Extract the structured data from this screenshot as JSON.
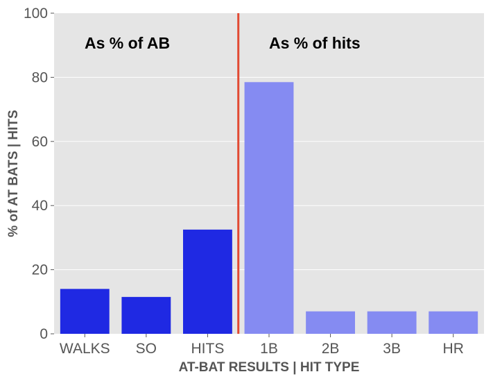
{
  "chart_data": {
    "type": "bar",
    "categories": [
      "WALKS",
      "SO",
      "HITS",
      "1B",
      "2B",
      "3B",
      "HR"
    ],
    "values": [
      14,
      11.5,
      32.5,
      78.5,
      7,
      7,
      7
    ],
    "bar_colors": [
      "#1f29e3",
      "#1f29e3",
      "#1f29e3",
      "#858bf2",
      "#858bf2",
      "#858bf2",
      "#858bf2"
    ],
    "xlabel": "AT-BAT RESULTS | HIT TYPE",
    "ylabel": "% of AT BATS | HITS",
    "ylim": [
      0,
      100
    ],
    "yticks": [
      0,
      20,
      40,
      60,
      80,
      100
    ],
    "grid": true,
    "background_color": "#e5e5e5",
    "divider": {
      "between": [
        "HITS",
        "1B"
      ],
      "color": "#e24a33"
    },
    "annotations": [
      {
        "text": "As % of AB"
      },
      {
        "text": "As % of hits"
      }
    ]
  }
}
